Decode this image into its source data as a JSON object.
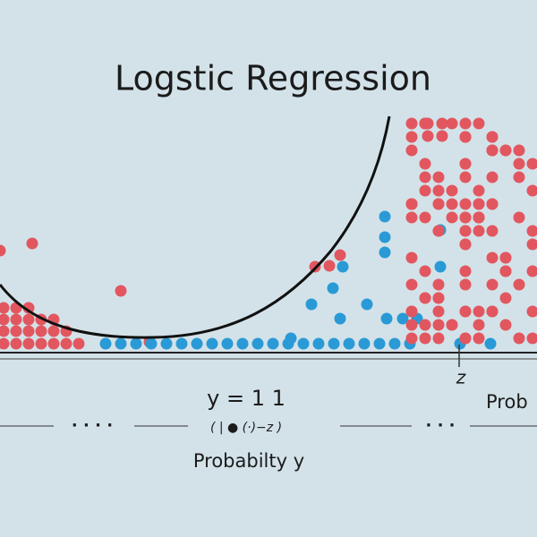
{
  "header": {
    "title": "Logstic Regression"
  },
  "labels": {
    "equation": "y = 1 1",
    "formula": "( | ● (·)−z )",
    "caption": "Probabilty y",
    "z_mark": "z",
    "side": "Prob",
    "dots_left": "· · · ·",
    "dots_right": "· · ·"
  }
}
